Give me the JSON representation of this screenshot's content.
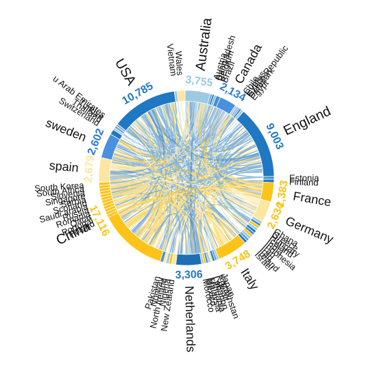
{
  "chart_data": {
    "type": "chord",
    "title": "",
    "total_countries": 63,
    "colors": {
      "blue_dark": "#1f78c1",
      "blue_light": "#9ecae1",
      "yellow": "#fcc419",
      "yellow_light": "#fde6a0",
      "slate": "#8ea8c3"
    },
    "groups": [
      {
        "name": "Australia",
        "value": 3755,
        "value_label": "3,755",
        "span": [
          359.0,
          16.0
        ],
        "color": "#9ecae1",
        "label_color": "#9ecae1",
        "label_size": 20,
        "value_size": 16
      },
      {
        "name": "Austria",
        "span": [
          16.0,
          17.3
        ],
        "color": "#5ba3d8",
        "label_size": 13
      },
      {
        "name": "Bangladesh",
        "span": [
          17.3,
          18.6
        ],
        "color": "#1f78c1",
        "label_size": 13
      },
      {
        "name": "Belgium",
        "span": [
          18.6,
          20.0
        ],
        "color": "#7fb8e0",
        "label_size": 13
      },
      {
        "name": "Brazil",
        "span": [
          20.0,
          22.8
        ],
        "color": "#4a90c9",
        "label_size": 13
      },
      {
        "name": "Canada",
        "value": 2134,
        "value_label": "2,134",
        "span": [
          22.8,
          34.0
        ],
        "color": "#4a8fe0",
        "label_color": "#2a7ad0",
        "label_size": 18,
        "value_size": 16
      },
      {
        "name": "Chile",
        "span": [
          34.0,
          35.3
        ],
        "color": "#9ecae1",
        "label_size": 13
      },
      {
        "name": "Cyprus",
        "span": [
          35.3,
          36.5
        ],
        "color": "#8ea8c3",
        "label_size": 13
      },
      {
        "name": "Czech Republic",
        "span": [
          36.5,
          37.6
        ],
        "color": "#5ba3d8",
        "label_size": 13
      },
      {
        "name": "Denmark",
        "span": [
          37.6,
          38.8
        ],
        "color": "#1f78c1",
        "label_size": 13
      },
      {
        "name": "Egypt",
        "span": [
          38.8,
          40.6
        ],
        "color": "#9ecae1",
        "label_size": 13
      },
      {
        "name": "England",
        "value": 9003,
        "value_label": "9,003",
        "span": [
          40.6,
          89.0
        ],
        "color": "#1f78c1",
        "label_color": "#1f78c1",
        "label_size": 20,
        "value_size": 16
      },
      {
        "name": "Estonia",
        "span": [
          89.0,
          91.0
        ],
        "color": "#4a90c9",
        "label_size": 13
      },
      {
        "name": "Finland",
        "span": [
          91.0,
          93.2
        ],
        "color": "#1f78c1",
        "label_size": 13
      },
      {
        "name": "France",
        "value": 2383,
        "value_label": "2,383",
        "span": [
          93.2,
          106.0
        ],
        "color": "#fcc419",
        "label_color": "#fcc419",
        "label_size": 18,
        "value_size": 16
      },
      {
        "name": "Germany",
        "value": 2634,
        "value_label": "2,634",
        "span": [
          106.0,
          120.0
        ],
        "color": "#fde6a0",
        "label_color": "#fcc419",
        "label_size": 18,
        "value_size": 16
      },
      {
        "name": "Ghana",
        "span": [
          120.0,
          121.8
        ],
        "color": "#9ecae1",
        "label_size": 13
      },
      {
        "name": "Greece",
        "span": [
          121.8,
          123.6
        ],
        "color": "#4a90c9",
        "label_size": 13
      },
      {
        "name": "Hungary",
        "span": [
          123.6,
          125.4
        ],
        "color": "#fcc419",
        "label_size": 13
      },
      {
        "name": "Iceland",
        "span": [
          125.4,
          127.2
        ],
        "color": "#9ecae1",
        "label_size": 13
      },
      {
        "name": "India",
        "span": [
          127.2,
          129.0
        ],
        "color": "#1f78c1",
        "label_size": 13
      },
      {
        "name": "Indonesia",
        "span": [
          129.0,
          130.8
        ],
        "color": "#4a90c9",
        "label_size": 13
      },
      {
        "name": "Iran",
        "span": [
          130.8,
          132.6
        ],
        "color": "#fcc419",
        "label_size": 13
      },
      {
        "name": "Iraq",
        "span": [
          132.6,
          134.4
        ],
        "color": "#9ecae1",
        "label_size": 13
      },
      {
        "name": "Ireland",
        "span": [
          134.4,
          136.2
        ],
        "color": "#5ba3d8",
        "label_size": 13
      },
      {
        "name": "Israel",
        "span": [
          136.2,
          138.0
        ],
        "color": "#1f78c1",
        "label_size": 13
      },
      {
        "name": "Italy",
        "value": 3748,
        "value_label": "3,748",
        "span": [
          138.0,
          158.0
        ],
        "color": "#fcc419",
        "label_color": "#fcc419",
        "label_size": 18,
        "value_size": 16
      },
      {
        "name": "Japan",
        "span": [
          158.0,
          159.5
        ],
        "color": "#9ecae1",
        "label_size": 13
      },
      {
        "name": "Kazakhstan",
        "span": [
          159.5,
          161.0
        ],
        "color": "#5ba3d8",
        "label_size": 13
      },
      {
        "name": "Kuwait",
        "span": [
          161.0,
          162.5
        ],
        "color": "#1f78c1",
        "label_size": 13
      },
      {
        "name": "Lebanon",
        "span": [
          162.5,
          164.0
        ],
        "color": "#fde6a0",
        "label_size": 13
      },
      {
        "name": "Lithuania",
        "span": [
          164.0,
          165.5
        ],
        "color": "#9ecae1",
        "label_size": 13
      },
      {
        "name": "Malaysia",
        "span": [
          165.5,
          167.0
        ],
        "color": "#4a90c9",
        "label_size": 13
      },
      {
        "name": "Mexico",
        "span": [
          167.0,
          168.5
        ],
        "color": "#fcc419",
        "label_size": 13
      },
      {
        "name": "Morocco",
        "span": [
          168.5,
          170.0
        ],
        "color": "#9ecae1",
        "label_size": 13
      },
      {
        "name": "Netherlands",
        "value": 3306,
        "value_label": "3,306",
        "span": [
          170.0,
          187.0
        ],
        "color": "#1f6fb4",
        "label_color": "#1f78c1",
        "label_size": 18,
        "value_size": 16
      },
      {
        "name": "New Zealand",
        "span": [
          187.0,
          189.8
        ],
        "color": "#fde6a0",
        "label_size": 13
      },
      {
        "name": "Nigeria",
        "span": [
          189.8,
          191.6
        ],
        "color": "#fcc419",
        "label_size": 13
      },
      {
        "name": "North Ireland",
        "span": [
          191.6,
          193.6
        ],
        "color": "#9ecae1",
        "label_size": 13
      },
      {
        "name": "Norway",
        "span": [
          193.6,
          195.4
        ],
        "color": "#fde6a0",
        "label_size": 13
      },
      {
        "name": "Pakistan",
        "span": [
          195.4,
          197.5
        ],
        "color": "#4a90c9",
        "label_size": 13
      },
      {
        "name": "China",
        "value": 17116,
        "value_label": "17,116",
        "span": [
          197.5,
          290.0
        ],
        "color": "#fcc419",
        "label_color": "#fcc419",
        "label_size": 20,
        "value_size": 16
      },
      {
        "name": "Poland",
        "span": [
          243.0,
          245.0
        ],
        "color": "#fcc419",
        "label_size": 13
      },
      {
        "name": "Portugal",
        "span": [
          245.0,
          247.0
        ],
        "color": "#fcc419",
        "label_size": 13
      },
      {
        "name": "Qatar",
        "span": [
          247.0,
          249.0
        ],
        "color": "#fcc419",
        "label_size": 13
      },
      {
        "name": "Romania",
        "span": [
          249.0,
          251.0
        ],
        "color": "#fcc419",
        "label_size": 13
      },
      {
        "name": "Russia",
        "span": [
          251.0,
          253.0
        ],
        "color": "#fcc419",
        "label_size": 13
      },
      {
        "name": "Saudi arabia",
        "span": [
          253.0,
          255.0
        ],
        "color": "#fcc419",
        "label_size": 13
      },
      {
        "name": "Scotland",
        "span": [
          255.0,
          257.0
        ],
        "color": "#fcc419",
        "label_size": 13
      },
      {
        "name": "Serbia",
        "span": [
          257.0,
          259.0
        ],
        "color": "#fcc419",
        "label_size": 13
      },
      {
        "name": "Singapore",
        "span": [
          259.0,
          261.0
        ],
        "color": "#fcc419",
        "label_size": 13
      },
      {
        "name": "Slovenia",
        "span": [
          261.0,
          263.0
        ],
        "color": "#fcc419",
        "label_size": 13
      },
      {
        "name": "South Africa",
        "span": [
          263.0,
          265.0
        ],
        "color": "#fcc419",
        "label_size": 13
      },
      {
        "name": "South Korea",
        "span": [
          265.0,
          267.0
        ],
        "color": "#fcc419",
        "label_size": 13
      },
      {
        "name": "spain",
        "value": 2679,
        "value_label": "2,679",
        "span": [
          267.0,
          283.5
        ],
        "color": "#fde6a0",
        "label_color": "#fde6a0",
        "label_size": 18,
        "value_size": 16
      },
      {
        "name": "sweden",
        "value": 2602,
        "value_label": "2,602",
        "span": [
          283.5,
          300.0
        ],
        "color": "#4a8fe0",
        "label_color": "#2a7ad0",
        "label_size": 18,
        "value_size": 16
      },
      {
        "name": "Switzerland",
        "span": [
          300.0,
          303.5
        ],
        "color": "#1f78c1",
        "label_size": 13
      },
      {
        "name": "Thailand",
        "span": [
          303.5,
          305.0
        ],
        "color": "#9ecae1",
        "label_size": 13
      },
      {
        "name": "Turkiye",
        "span": [
          305.0,
          306.5
        ],
        "color": "#5ba3d8",
        "label_size": 13
      },
      {
        "name": "u Arab Emirates",
        "span": [
          306.5,
          308.0
        ],
        "color": "#8ea8c3",
        "label_size": 13
      },
      {
        "name": "USA",
        "value": 10785,
        "value_label": "10,785",
        "span": [
          308.0,
          352.0
        ],
        "color": "#1f78c1",
        "label_color": "#1f78c1",
        "label_size": 20,
        "value_size": 16
      },
      {
        "name": "Vietnam",
        "span": [
          352.0,
          354.0
        ],
        "color": "#9ecae1",
        "label_size": 13
      },
      {
        "name": "Wales",
        "span": [
          354.0,
          359.0
        ],
        "color": "#fde6a0",
        "label_size": 13
      }
    ]
  }
}
